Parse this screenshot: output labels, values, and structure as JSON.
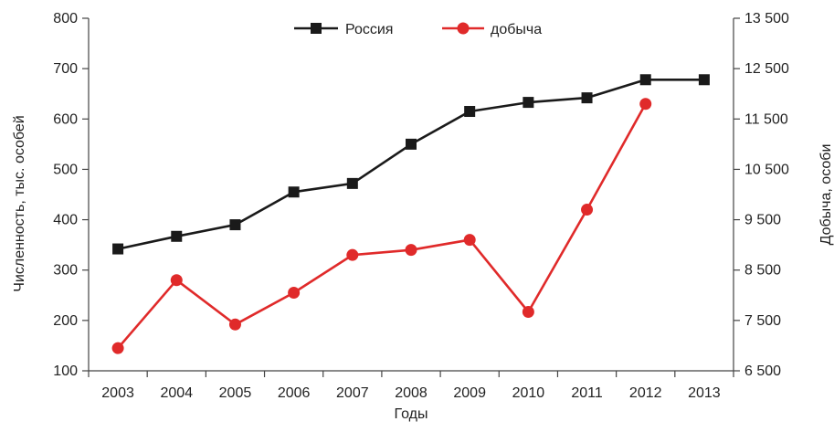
{
  "chart_data": {
    "type": "line",
    "xlabel": "Годы",
    "ylabel": "Численность, тыс. особей",
    "y2label": "Добыча, особи",
    "categories": [
      "2003",
      "2004",
      "2005",
      "2006",
      "2007",
      "2008",
      "2009",
      "2010",
      "2011",
      "2012",
      "2013"
    ],
    "ylim": [
      100,
      800
    ],
    "yticks": [
      "100",
      "200",
      "300",
      "400",
      "500",
      "600",
      "700",
      "800"
    ],
    "y2lim": [
      6500,
      13500
    ],
    "y2ticks": [
      "6 500",
      "7 500",
      "8 500",
      "9 500",
      "10 500",
      "11 500",
      "12 500",
      "13 500"
    ],
    "legend_position": "top-center",
    "series": [
      {
        "name": "Россия",
        "axis": "left",
        "marker": "square",
        "color": "#1a1a1a",
        "values": [
          342,
          367,
          390,
          455,
          472,
          550,
          615,
          633,
          642,
          678,
          678
        ]
      },
      {
        "name": "добыча",
        "axis": "right",
        "marker": "circle",
        "color": "#e02a2a",
        "values": [
          6950,
          8300,
          7420,
          8050,
          8800,
          8900,
          9100,
          7670,
          9700,
          11800,
          null
        ]
      }
    ]
  }
}
